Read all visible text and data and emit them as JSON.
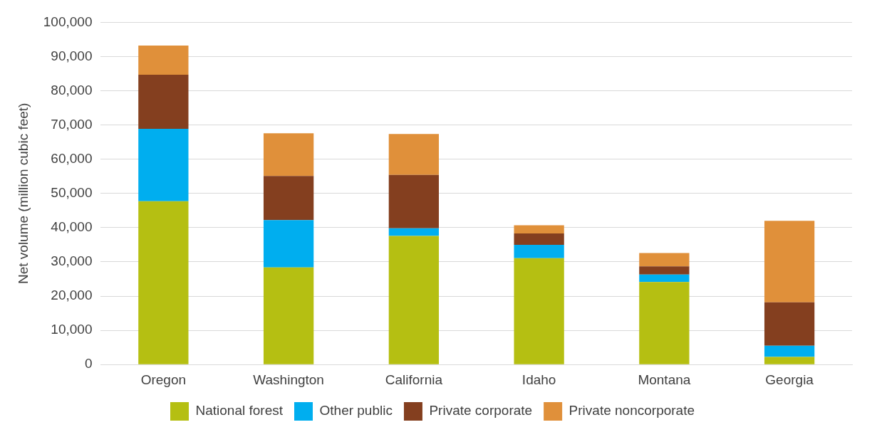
{
  "chart_data": {
    "type": "bar",
    "stacked": true,
    "ylabel": "Net volume (million cubic feet)",
    "categories": [
      "Oregon",
      "Washington",
      "California",
      "Idaho",
      "Montana",
      "Georgia"
    ],
    "series": [
      {
        "name": "National forest",
        "color": "#b5bf12",
        "values": [
          47700,
          28400,
          37600,
          31100,
          24100,
          2200
        ]
      },
      {
        "name": "Other public",
        "color": "#00aeef",
        "values": [
          21200,
          13800,
          2200,
          3900,
          2200,
          3300
        ]
      },
      {
        "name": "Private corporate",
        "color": "#843f1f",
        "values": [
          15800,
          12900,
          15600,
          3300,
          2400,
          12700
        ]
      },
      {
        "name": "Private noncorporate",
        "color": "#e0903a",
        "values": [
          8500,
          12500,
          12000,
          2400,
          3900,
          23800
        ]
      }
    ],
    "ylim": [
      0,
      100000
    ],
    "yticks": [
      0,
      {
        "value": 10000,
        "label": "10,000"
      },
      {
        "value": 20000,
        "label": "20,000"
      },
      {
        "value": 30000,
        "label": "30,000"
      },
      {
        "value": 40000,
        "label": "40,000"
      },
      {
        "value": 50000,
        "label": "50,000"
      },
      {
        "value": 60000,
        "label": "60,000"
      },
      {
        "value": 70000,
        "label": "70,000"
      },
      {
        "value": 80000,
        "label": "80,000"
      },
      {
        "value": 90000,
        "label": "90,000"
      },
      {
        "value": 100000,
        "label": "100,000"
      }
    ],
    "grid": "y",
    "legend": "bottom"
  }
}
